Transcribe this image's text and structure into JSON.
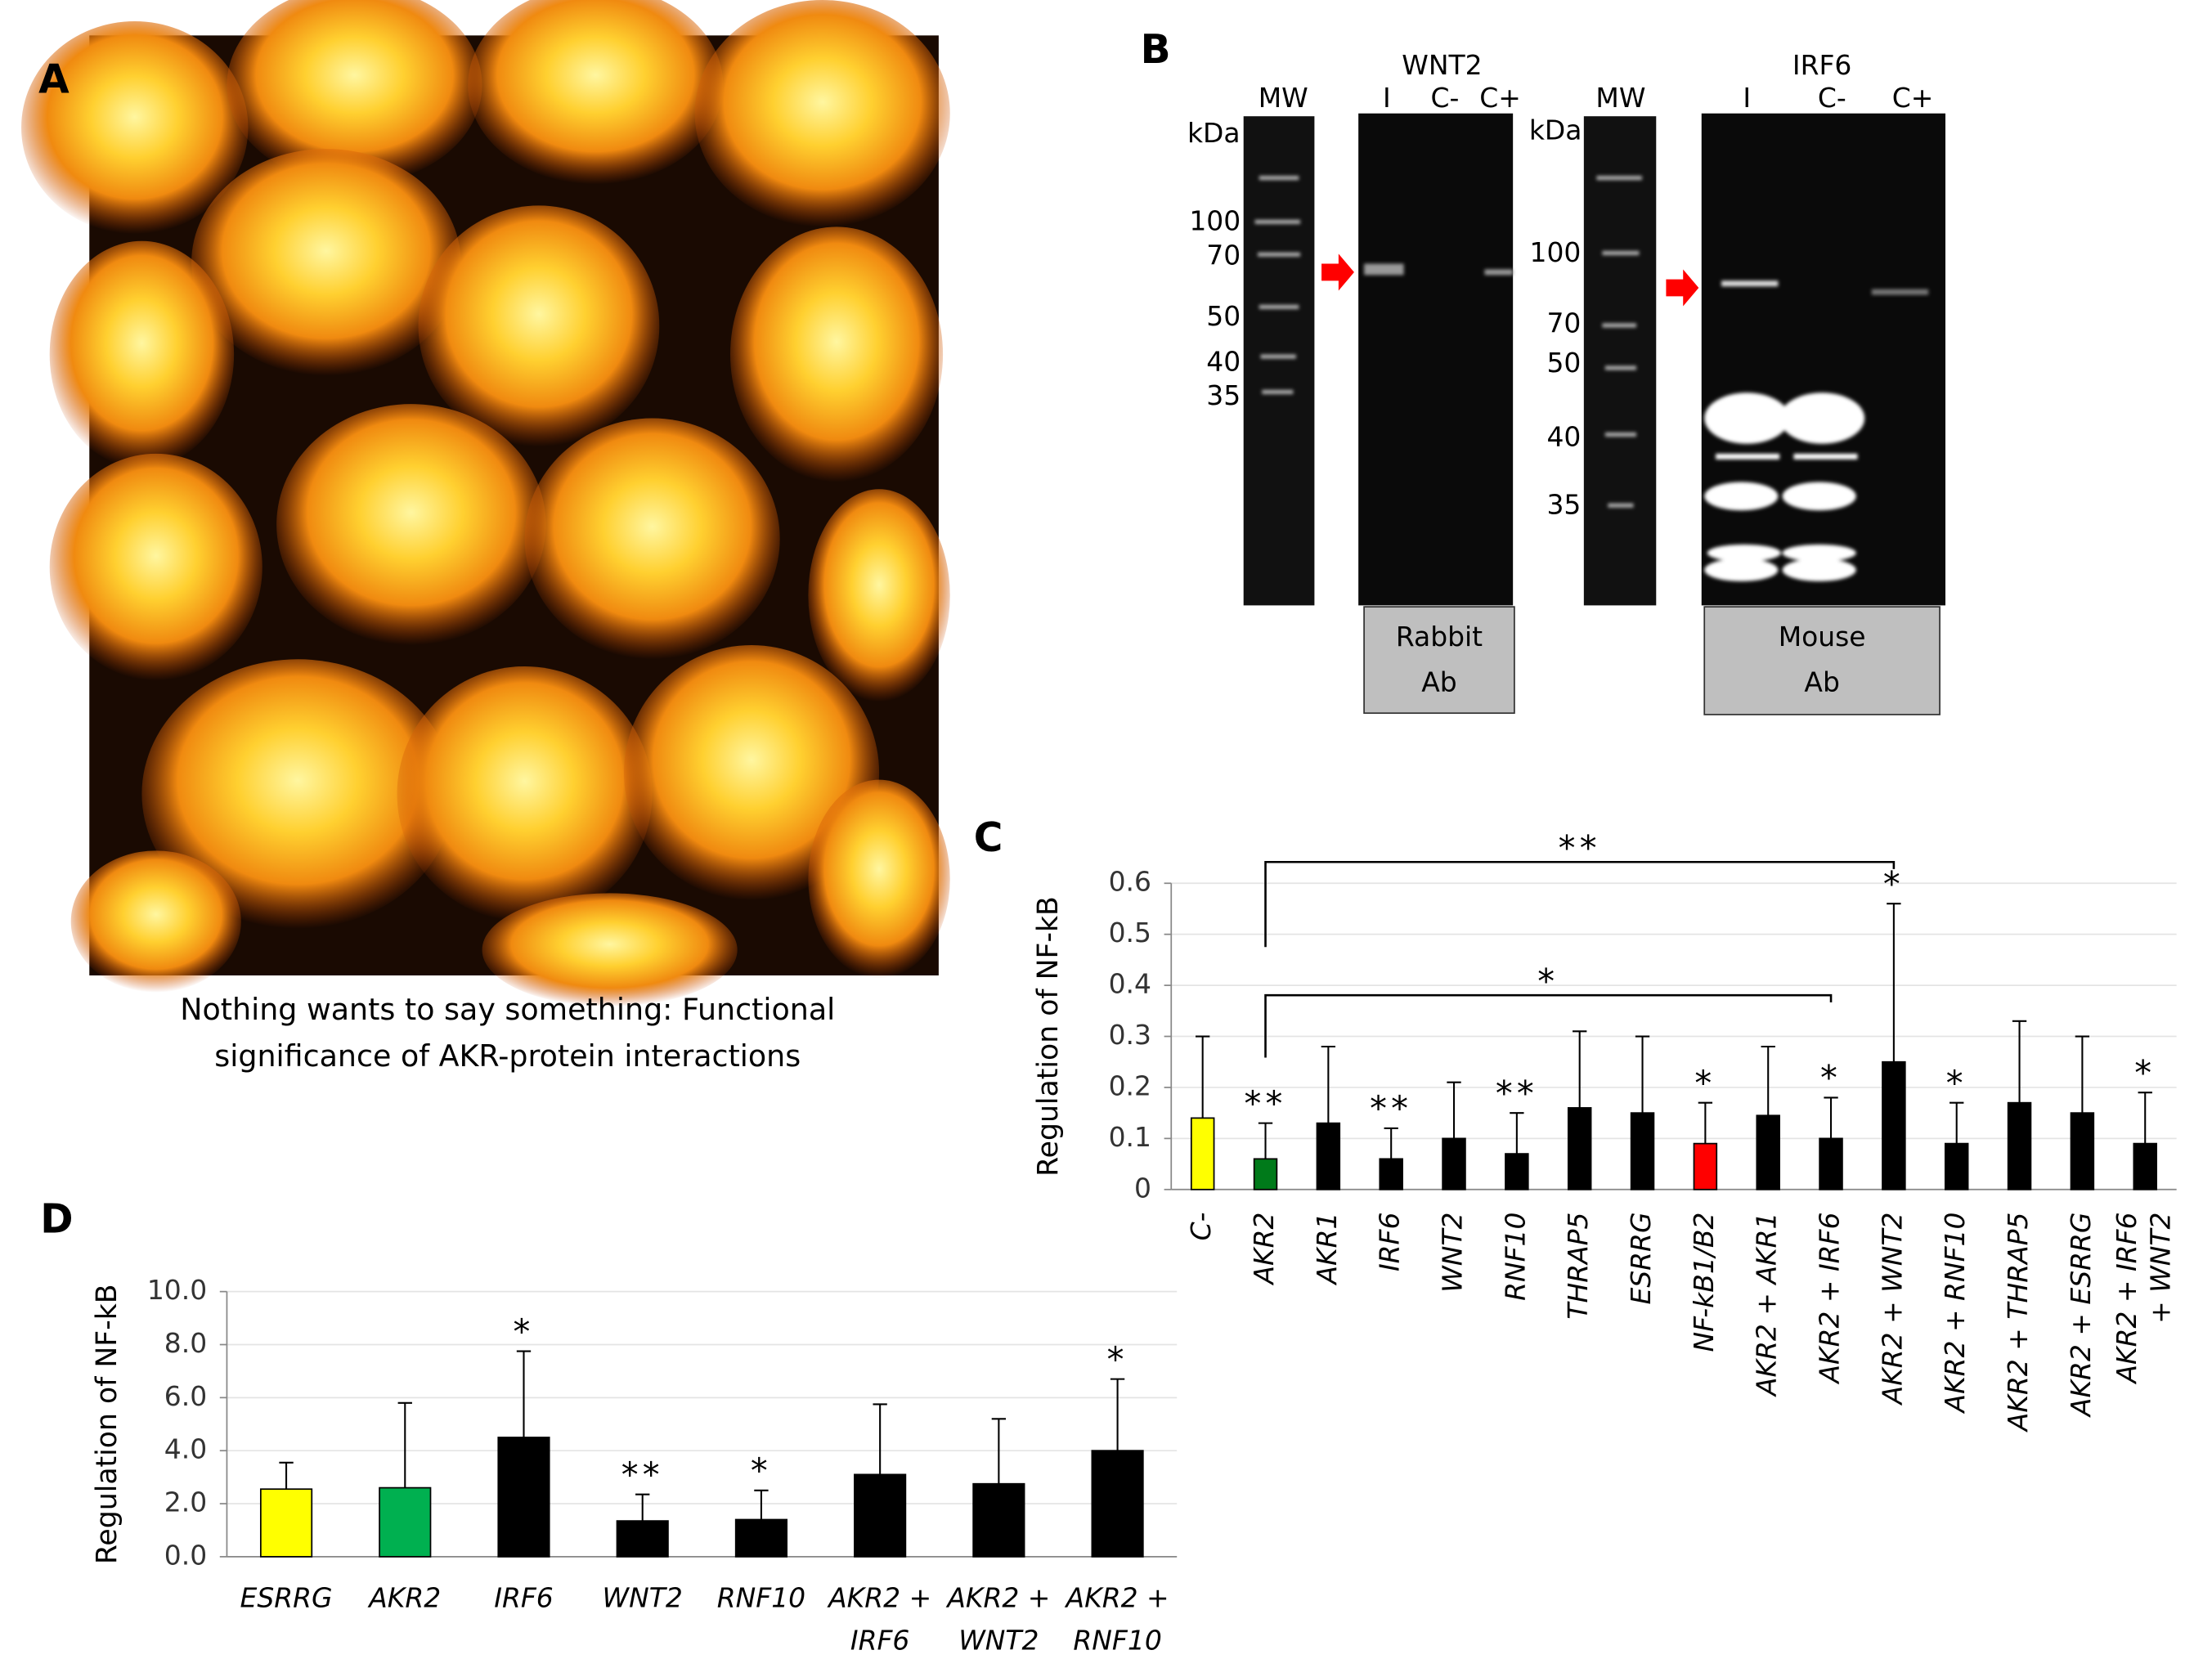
{
  "panel_a": {
    "label": "A",
    "caption": [
      "Nothing wants to say something: Functional",
      "significance of AKR-protein interactions"
    ]
  },
  "panel_b": {
    "label": "B",
    "blots": [
      {
        "mw": "MW",
        "unit": "kDa",
        "markers": [
          100,
          70,
          50,
          40,
          35
        ],
        "target": "WNT2",
        "lanes": [
          "I",
          "C-",
          "C+"
        ],
        "antibody": [
          "Rabbit",
          "Ab"
        ]
      },
      {
        "mw": "MW",
        "unit": "kDa",
        "markers": [
          100,
          70,
          50,
          40,
          35
        ],
        "target": "IRF6",
        "lanes": [
          "I",
          "C-",
          "C+"
        ],
        "antibody": [
          "Mouse",
          "Ab"
        ]
      }
    ]
  },
  "chart_data": [
    {
      "type": "bar",
      "label": "C",
      "ylabel": "Regulation of NF-kB",
      "categories": [
        "C-",
        "AKR2",
        "AKR1",
        "IRF6",
        "WNT2",
        "RNF10",
        "THRAP5",
        "ESRRG",
        "NF-kB1/B2",
        "AKR2 + AKR1",
        "AKR2 + IRF6",
        "AKR2 + WNT2",
        "AKR2 + RNF10",
        "AKR2 + THRAP5",
        "AKR2 + ESRRG",
        [
          "AKR2 + IRF6",
          "+ WNT2"
        ]
      ],
      "values": [
        0.14,
        0.06,
        0.13,
        0.06,
        0.1,
        0.07,
        0.16,
        0.15,
        0.09,
        0.145,
        0.1,
        0.25,
        0.09,
        0.17,
        0.15,
        0.09
      ],
      "errors": [
        0.16,
        0.07,
        0.15,
        0.06,
        0.11,
        0.08,
        0.15,
        0.15,
        0.08,
        0.135,
        0.08,
        0.31,
        0.08,
        0.16,
        0.15,
        0.1
      ],
      "significance": [
        null,
        "**",
        null,
        "**",
        null,
        "**",
        null,
        null,
        "*",
        null,
        "*",
        "*",
        "*",
        null,
        null,
        "*"
      ],
      "colors": [
        "#ffff00",
        "#007a1a",
        "#000000",
        "#000000",
        "#000000",
        "#000000",
        "#000000",
        "#000000",
        "#ff0000",
        "#000000",
        "#000000",
        "#000000",
        "#000000",
        "#000000",
        "#000000",
        "#000000"
      ],
      "brackets": [
        {
          "from": "AKR2",
          "to": "AKR2 + WNT2",
          "label": "**",
          "color": "#ff0000"
        },
        {
          "from": "AKR2",
          "to": "AKR2 + IRF6",
          "label": "*",
          "color": "#ff0000"
        }
      ],
      "ylim": [
        0,
        0.6
      ],
      "yticks": [
        0,
        0.1,
        0.2,
        0.3,
        0.4,
        0.5,
        0.6
      ],
      "grid": true
    },
    {
      "type": "bar",
      "label": "D",
      "ylabel": "Regulation of NF-kB",
      "categories": [
        "ESRRG",
        "AKR2",
        "IRF6",
        "WNT2",
        "RNF10",
        [
          "AKR2 +",
          "IRF6"
        ],
        [
          "AKR2 +",
          "WNT2"
        ],
        [
          "AKR2 +",
          "RNF10"
        ]
      ],
      "values": [
        2.55,
        2.6,
        4.5,
        1.35,
        1.4,
        3.1,
        2.75,
        4.0
      ],
      "errors": [
        1.0,
        3.2,
        3.25,
        1.0,
        1.1,
        2.65,
        2.45,
        2.7
      ],
      "significance": [
        null,
        null,
        "*",
        "**",
        "*",
        null,
        null,
        "*"
      ],
      "colors": [
        "#ffff00",
        "#00b050",
        "#000000",
        "#000000",
        "#000000",
        "#000000",
        "#000000",
        "#000000"
      ],
      "ylim": [
        0,
        10
      ],
      "yticks": [
        {
          "value": 0,
          "label": "0.0"
        },
        {
          "value": 2,
          "label": "2.0"
        },
        {
          "value": 4,
          "label": "4.0"
        },
        {
          "value": 6,
          "label": "6.0"
        },
        {
          "value": 8,
          "label": "8.0"
        },
        {
          "value": 10,
          "label": "10.0"
        }
      ],
      "grid": true
    }
  ]
}
